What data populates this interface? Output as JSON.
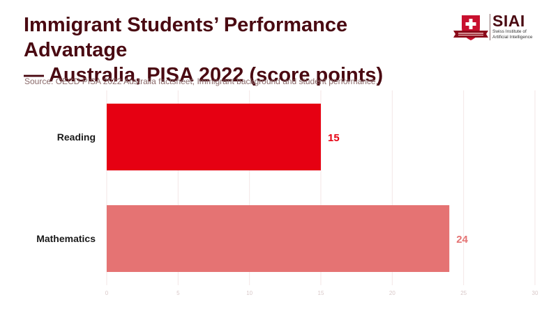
{
  "header": {
    "title_line1": "Immigrant Students’ Performance Advantage",
    "title_line2": "— Australia, PISA 2022 (score points)",
    "source": "Source: OECD PISA 2022 Australia factsheet; Immigrant background and student performance."
  },
  "logo": {
    "name": "SIAI",
    "sub_line1": "Swiss Institute of",
    "sub_line2": "Artificial Intelligence",
    "icon": "swiss-shield-icon"
  },
  "colors": {
    "reading": "#e60012",
    "mathematics": "#e57373",
    "title": "#4a0a12",
    "grid": "#f3e6e6",
    "tick": "#d9c8c8"
  },
  "chart_data": {
    "type": "bar",
    "orientation": "horizontal",
    "title": "Immigrant Students’ Performance Advantage — Australia, PISA 2022 (score points)",
    "xlabel": "",
    "ylabel": "",
    "categories": [
      "Reading",
      "Mathematics"
    ],
    "values": [
      15,
      24
    ],
    "data_labels": [
      "15",
      "24"
    ],
    "xlim": [
      0,
      30
    ],
    "xticks": [
      0,
      5,
      10,
      15,
      20,
      25,
      30
    ],
    "grid": true,
    "legend": "none"
  }
}
